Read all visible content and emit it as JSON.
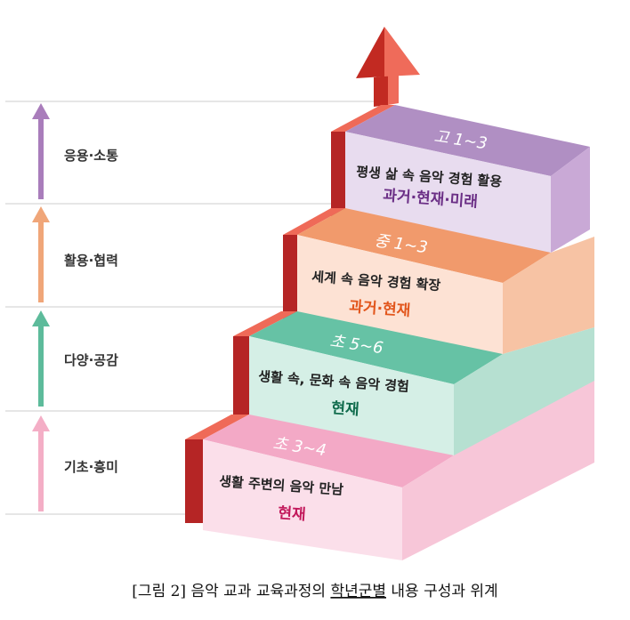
{
  "left_axis": [
    {
      "label": "응용·소통",
      "color": "#a97dbb"
    },
    {
      "label": "활용·협력",
      "color": "#f0a679"
    },
    {
      "label": "다양·공감",
      "color": "#5dbb9b"
    },
    {
      "label": "기초·흥미",
      "color": "#f4aec6"
    }
  ],
  "steps": [
    {
      "grade": "고 1~3",
      "title": "평생 삶 속 음악 경험 활용",
      "time": "과거·현재·미래",
      "top_color": "#b08fc3",
      "front_color": "#e8dcef",
      "side_color": "#c9a9d6",
      "time_color": "#6b2f86"
    },
    {
      "grade": "중 1~3",
      "title": "세계 속 음악 경험 확장",
      "time": "과거·현재",
      "top_color": "#f19a6c",
      "front_color": "#fde2d4",
      "side_color": "#f7c3a4",
      "time_color": "#e2561c"
    },
    {
      "grade": "초 5~6",
      "title": "생활 속, 문화 속 음악 경험",
      "time": "현재",
      "top_color": "#66c2a5",
      "front_color": "#d5efe6",
      "side_color": "#b6e0d1",
      "time_color": "#0f6b4c"
    },
    {
      "grade": "초 3~4",
      "title": "생활 주변의 음악 만남",
      "time": "현재",
      "top_color": "#f3a9c6",
      "front_color": "#fbdfea",
      "side_color": "#f7c6d8",
      "time_color": "#c2185b"
    }
  ],
  "caption": {
    "prefix": "[그림 2] 음악 교과 교육과정의 ",
    "underlined": "학년군별",
    "suffix": " 내용 구성과 위계"
  },
  "colors": {
    "riser": "#b52525",
    "riser_top": "#ef6a58",
    "arrow": "#c22a22",
    "arrow_light": "#ef6b5a",
    "line": "#cccccc"
  }
}
